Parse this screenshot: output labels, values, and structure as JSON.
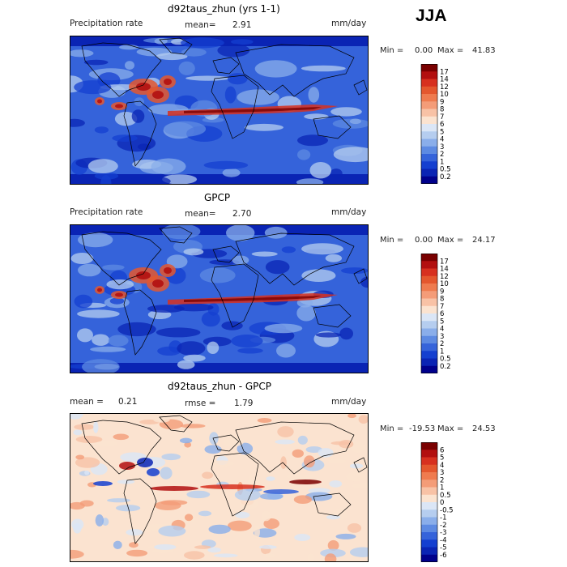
{
  "season": "JJA",
  "panels": [
    {
      "title": "d92taus_zhun (yrs 1-1)",
      "left_label": "Precipitation rate",
      "mid_label": "mean=",
      "mid_value": "2.91",
      "right_label": "mm/day",
      "min_label": "Min =",
      "min_value": "0.00",
      "max_label": "Max =",
      "max_value": "41.83",
      "palette": "precip"
    },
    {
      "title": "GPCP",
      "left_label": "Precipitation rate",
      "mid_label": "mean=",
      "mid_value": "2.70",
      "right_label": "mm/day",
      "min_label": "Min =",
      "min_value": "0.00",
      "max_label": "Max =",
      "max_value": "24.17",
      "palette": "precip"
    },
    {
      "title": "d92taus_zhun - GPCP",
      "left_label": "mean =",
      "left_value": "0.21",
      "mid_label": "rmse =",
      "mid_value": "1.79",
      "right_label": "mm/day",
      "min_label": "Min =",
      "min_value": "-19.53",
      "max_label": "Max =",
      "max_value": "24.53",
      "palette": "diff"
    }
  ],
  "colorbars": {
    "precip": {
      "labels": [
        "17",
        "14",
        "12",
        "10",
        "9",
        "8",
        "7",
        "6",
        "5",
        "4",
        "3",
        "2",
        "1",
        "0.5",
        "0.2"
      ],
      "colors": [
        "#7a0000",
        "#b20f0f",
        "#d7301f",
        "#e4572e",
        "#ef7b4f",
        "#f49c78",
        "#f8c2a6",
        "#fbe3d0",
        "#dbe6f6",
        "#b5cdef",
        "#8aaeea",
        "#5d8ae2",
        "#3563da",
        "#143fd0",
        "#0a24b4",
        "#00008b"
      ]
    },
    "diff": {
      "labels": [
        "6",
        "5",
        "4",
        "3",
        "2",
        "1",
        "0.5",
        "0",
        "-0.5",
        "-1",
        "-2",
        "-3",
        "-4",
        "-5",
        "-6"
      ],
      "colors": [
        "#7a0000",
        "#b20f0f",
        "#d7301f",
        "#e4572e",
        "#ef7b4f",
        "#f49c78",
        "#f8c2a6",
        "#fbe3d0",
        "#dbe6f6",
        "#b5cdef",
        "#8aaeea",
        "#5d8ae2",
        "#3563da",
        "#143fd0",
        "#0a24b4",
        "#00008b"
      ]
    }
  },
  "chart_data": [
    {
      "type": "heatmap",
      "title": "d92taus_zhun (yrs 1-1)",
      "variable": "Precipitation rate",
      "units": "mm/day",
      "mean": 2.91,
      "min": 0.0,
      "max": 41.83,
      "contour_levels": [
        0.2,
        0.5,
        1,
        2,
        3,
        4,
        5,
        6,
        7,
        8,
        9,
        10,
        12,
        14,
        17
      ]
    },
    {
      "type": "heatmap",
      "title": "GPCP",
      "variable": "Precipitation rate",
      "units": "mm/day",
      "mean": 2.7,
      "min": 0.0,
      "max": 24.17,
      "contour_levels": [
        0.2,
        0.5,
        1,
        2,
        3,
        4,
        5,
        6,
        7,
        8,
        9,
        10,
        12,
        14,
        17
      ]
    },
    {
      "type": "heatmap",
      "title": "d92taus_zhun - GPCP",
      "units": "mm/day",
      "mean": 0.21,
      "rmse": 1.79,
      "min": -19.53,
      "max": 24.53,
      "contour_levels": [
        -6,
        -5,
        -4,
        -3,
        -2,
        -1,
        -0.5,
        0,
        0.5,
        1,
        2,
        3,
        4,
        5,
        6
      ]
    }
  ]
}
